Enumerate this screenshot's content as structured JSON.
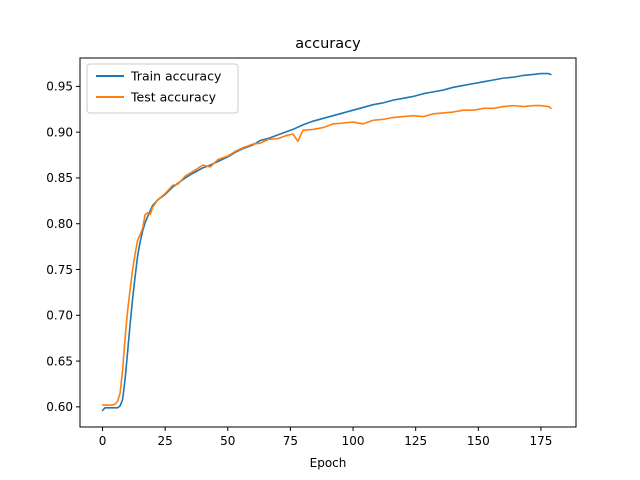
{
  "chart_data": {
    "type": "line",
    "title": "accuracy",
    "xlabel": "Epoch",
    "ylabel": "",
    "xlim": [
      -9,
      189
    ],
    "ylim": [
      0.578,
      0.981
    ],
    "x_ticks": [
      0,
      25,
      50,
      75,
      100,
      125,
      150,
      175
    ],
    "y_ticks": [
      0.6,
      0.65,
      0.7,
      0.75,
      0.8,
      0.85,
      0.9,
      0.95
    ],
    "grid": false,
    "legend_position": "top-left",
    "series": [
      {
        "name": "Train accuracy",
        "color": "#1f77b4",
        "points": [
          [
            0,
            0.596
          ],
          [
            1,
            0.599
          ],
          [
            2,
            0.599
          ],
          [
            3,
            0.599
          ],
          [
            4,
            0.599
          ],
          [
            5,
            0.599
          ],
          [
            6,
            0.599
          ],
          [
            7,
            0.601
          ],
          [
            8,
            0.608
          ],
          [
            9,
            0.63
          ],
          [
            10,
            0.66
          ],
          [
            11,
            0.69
          ],
          [
            12,
            0.718
          ],
          [
            13,
            0.742
          ],
          [
            14,
            0.765
          ],
          [
            15,
            0.78
          ],
          [
            16,
            0.792
          ],
          [
            17,
            0.801
          ],
          [
            18,
            0.808
          ],
          [
            19,
            0.814
          ],
          [
            20,
            0.82
          ],
          [
            22,
            0.826
          ],
          [
            25,
            0.832
          ],
          [
            28,
            0.84
          ],
          [
            30,
            0.844
          ],
          [
            33,
            0.85
          ],
          [
            36,
            0.855
          ],
          [
            40,
            0.861
          ],
          [
            43,
            0.864
          ],
          [
            46,
            0.868
          ],
          [
            50,
            0.873
          ],
          [
            53,
            0.878
          ],
          [
            56,
            0.882
          ],
          [
            60,
            0.886
          ],
          [
            63,
            0.891
          ],
          [
            66,
            0.893
          ],
          [
            70,
            0.897
          ],
          [
            73,
            0.9
          ],
          [
            76,
            0.903
          ],
          [
            80,
            0.908
          ],
          [
            84,
            0.912
          ],
          [
            88,
            0.915
          ],
          [
            92,
            0.918
          ],
          [
            96,
            0.921
          ],
          [
            100,
            0.924
          ],
          [
            104,
            0.927
          ],
          [
            108,
            0.93
          ],
          [
            112,
            0.932
          ],
          [
            116,
            0.935
          ],
          [
            120,
            0.937
          ],
          [
            124,
            0.939
          ],
          [
            128,
            0.942
          ],
          [
            132,
            0.944
          ],
          [
            136,
            0.946
          ],
          [
            140,
            0.949
          ],
          [
            144,
            0.951
          ],
          [
            148,
            0.953
          ],
          [
            152,
            0.955
          ],
          [
            156,
            0.957
          ],
          [
            160,
            0.959
          ],
          [
            164,
            0.96
          ],
          [
            168,
            0.962
          ],
          [
            172,
            0.963
          ],
          [
            175,
            0.964
          ],
          [
            178,
            0.964
          ],
          [
            179,
            0.963
          ]
        ]
      },
      {
        "name": "Test accuracy",
        "color": "#ff7f0e",
        "points": [
          [
            0,
            0.602
          ],
          [
            1,
            0.602
          ],
          [
            2,
            0.602
          ],
          [
            3,
            0.602
          ],
          [
            4,
            0.602
          ],
          [
            5,
            0.603
          ],
          [
            6,
            0.606
          ],
          [
            7,
            0.615
          ],
          [
            8,
            0.64
          ],
          [
            9,
            0.675
          ],
          [
            10,
            0.705
          ],
          [
            11,
            0.728
          ],
          [
            12,
            0.75
          ],
          [
            13,
            0.767
          ],
          [
            14,
            0.782
          ],
          [
            15,
            0.788
          ],
          [
            16,
            0.795
          ],
          [
            17,
            0.81
          ],
          [
            18,
            0.812
          ],
          [
            19,
            0.81
          ],
          [
            20,
            0.818
          ],
          [
            22,
            0.826
          ],
          [
            25,
            0.833
          ],
          [
            28,
            0.842
          ],
          [
            30,
            0.843
          ],
          [
            33,
            0.852
          ],
          [
            36,
            0.857
          ],
          [
            40,
            0.864
          ],
          [
            43,
            0.862
          ],
          [
            46,
            0.87
          ],
          [
            50,
            0.874
          ],
          [
            53,
            0.879
          ],
          [
            56,
            0.883
          ],
          [
            60,
            0.887
          ],
          [
            63,
            0.888
          ],
          [
            66,
            0.892
          ],
          [
            70,
            0.893
          ],
          [
            73,
            0.896
          ],
          [
            76,
            0.898
          ],
          [
            78,
            0.89
          ],
          [
            80,
            0.902
          ],
          [
            84,
            0.903
          ],
          [
            88,
            0.905
          ],
          [
            92,
            0.909
          ],
          [
            96,
            0.91
          ],
          [
            100,
            0.911
          ],
          [
            104,
            0.909
          ],
          [
            108,
            0.913
          ],
          [
            112,
            0.914
          ],
          [
            116,
            0.916
          ],
          [
            120,
            0.917
          ],
          [
            124,
            0.918
          ],
          [
            128,
            0.917
          ],
          [
            132,
            0.92
          ],
          [
            136,
            0.921
          ],
          [
            140,
            0.922
          ],
          [
            144,
            0.924
          ],
          [
            148,
            0.924
          ],
          [
            152,
            0.926
          ],
          [
            156,
            0.926
          ],
          [
            160,
            0.928
          ],
          [
            164,
            0.929
          ],
          [
            168,
            0.928
          ],
          [
            172,
            0.929
          ],
          [
            175,
            0.929
          ],
          [
            178,
            0.928
          ],
          [
            179,
            0.926
          ]
        ]
      }
    ]
  }
}
